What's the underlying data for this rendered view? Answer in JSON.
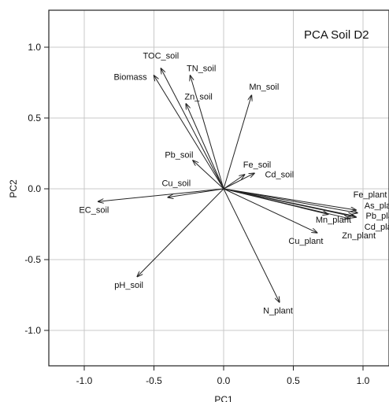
{
  "chart_data": {
    "type": "biplot",
    "title": "PCA Soil D2",
    "xlabel": "PC1",
    "ylabel": "PC2",
    "xlim": [
      -1.25,
      1.2
    ],
    "ylim": [
      -1.25,
      1.17
    ],
    "grid": true,
    "xticks": [
      "-1.0",
      "-0.5",
      "0.0",
      "0.5",
      "1.0"
    ],
    "yticks": [
      "1.0",
      "0.5",
      "0.0",
      "-0.5",
      "-1.0"
    ],
    "vectors": [
      {
        "name": "TOC_soil",
        "x": -0.45,
        "y": 0.85
      },
      {
        "name": "Biomass",
        "x": -0.5,
        "y": 0.8
      },
      {
        "name": "TN_soil",
        "x": -0.24,
        "y": 0.8
      },
      {
        "name": "Zn_soil",
        "x": -0.27,
        "y": 0.6
      },
      {
        "name": "Mn_soil",
        "x": 0.2,
        "y": 0.66
      },
      {
        "name": "Pb_soil",
        "x": -0.22,
        "y": 0.2
      },
      {
        "name": "Cu_soil",
        "x": -0.4,
        "y": -0.06
      },
      {
        "name": "EC_soil",
        "x": -0.9,
        "y": -0.09
      },
      {
        "name": "pH_soil",
        "x": -0.62,
        "y": -0.62
      },
      {
        "name": "Fe_soil",
        "x": 0.15,
        "y": 0.1
      },
      {
        "name": "Cd_soil",
        "x": 0.22,
        "y": 0.11
      },
      {
        "name": "N_plant",
        "x": 0.4,
        "y": -0.8
      },
      {
        "name": "Cu_plant",
        "x": 0.67,
        "y": -0.31
      },
      {
        "name": "Mn_plant",
        "x": 0.75,
        "y": -0.18
      },
      {
        "name": "Fe_plant",
        "x": 0.95,
        "y": -0.15
      },
      {
        "name": "As_plant",
        "x": 0.96,
        "y": -0.17
      },
      {
        "name": "Pb_plant",
        "x": 0.95,
        "y": -0.2
      },
      {
        "name": "Cd_plant",
        "x": 0.93,
        "y": -0.19
      },
      {
        "name": "Zn_plant",
        "x": 0.9,
        "y": -0.21
      }
    ],
    "labels": [
      {
        "text": "TOC_soil",
        "x": -0.45,
        "y": 0.92,
        "anchor": "middle"
      },
      {
        "text": "TN_soil",
        "x": -0.16,
        "y": 0.83,
        "anchor": "middle"
      },
      {
        "text": "Biomass",
        "x": -0.55,
        "y": 0.77,
        "anchor": "end"
      },
      {
        "text": "Zn_soil",
        "x": -0.18,
        "y": 0.63,
        "anchor": "middle"
      },
      {
        "text": "Mn_soil",
        "x": 0.29,
        "y": 0.7,
        "anchor": "middle"
      },
      {
        "text": "Pb_soil",
        "x": -0.32,
        "y": 0.22,
        "anchor": "middle"
      },
      {
        "text": "Fe_soil",
        "x": 0.24,
        "y": 0.15,
        "anchor": "middle"
      },
      {
        "text": "Cd_soil",
        "x": 0.4,
        "y": 0.08,
        "anchor": "middle"
      },
      {
        "text": "Cu_soil",
        "x": -0.34,
        "y": 0.02,
        "anchor": "middle"
      },
      {
        "text": "EC_soil",
        "x": -0.93,
        "y": -0.17,
        "anchor": "middle"
      },
      {
        "text": "pH_soil",
        "x": -0.68,
        "y": -0.7,
        "anchor": "middle"
      },
      {
        "text": "N_plant",
        "x": 0.39,
        "y": -0.88,
        "anchor": "middle"
      },
      {
        "text": "Fe_plant",
        "x": 0.93,
        "y": -0.06,
        "anchor": "start"
      },
      {
        "text": "As_plant",
        "x": 1.01,
        "y": -0.14,
        "anchor": "start"
      },
      {
        "text": "Pb_plant",
        "x": 1.02,
        "y": -0.21,
        "anchor": "start"
      },
      {
        "text": "Mn_plant",
        "x": 0.66,
        "y": -0.24,
        "anchor": "start"
      },
      {
        "text": "Cd_plant",
        "x": 1.01,
        "y": -0.29,
        "anchor": "start"
      },
      {
        "text": "Zn_plant",
        "x": 0.97,
        "y": -0.35,
        "anchor": "middle"
      },
      {
        "text": "Cu_plant",
        "x": 0.59,
        "y": -0.39,
        "anchor": "middle"
      }
    ]
  }
}
